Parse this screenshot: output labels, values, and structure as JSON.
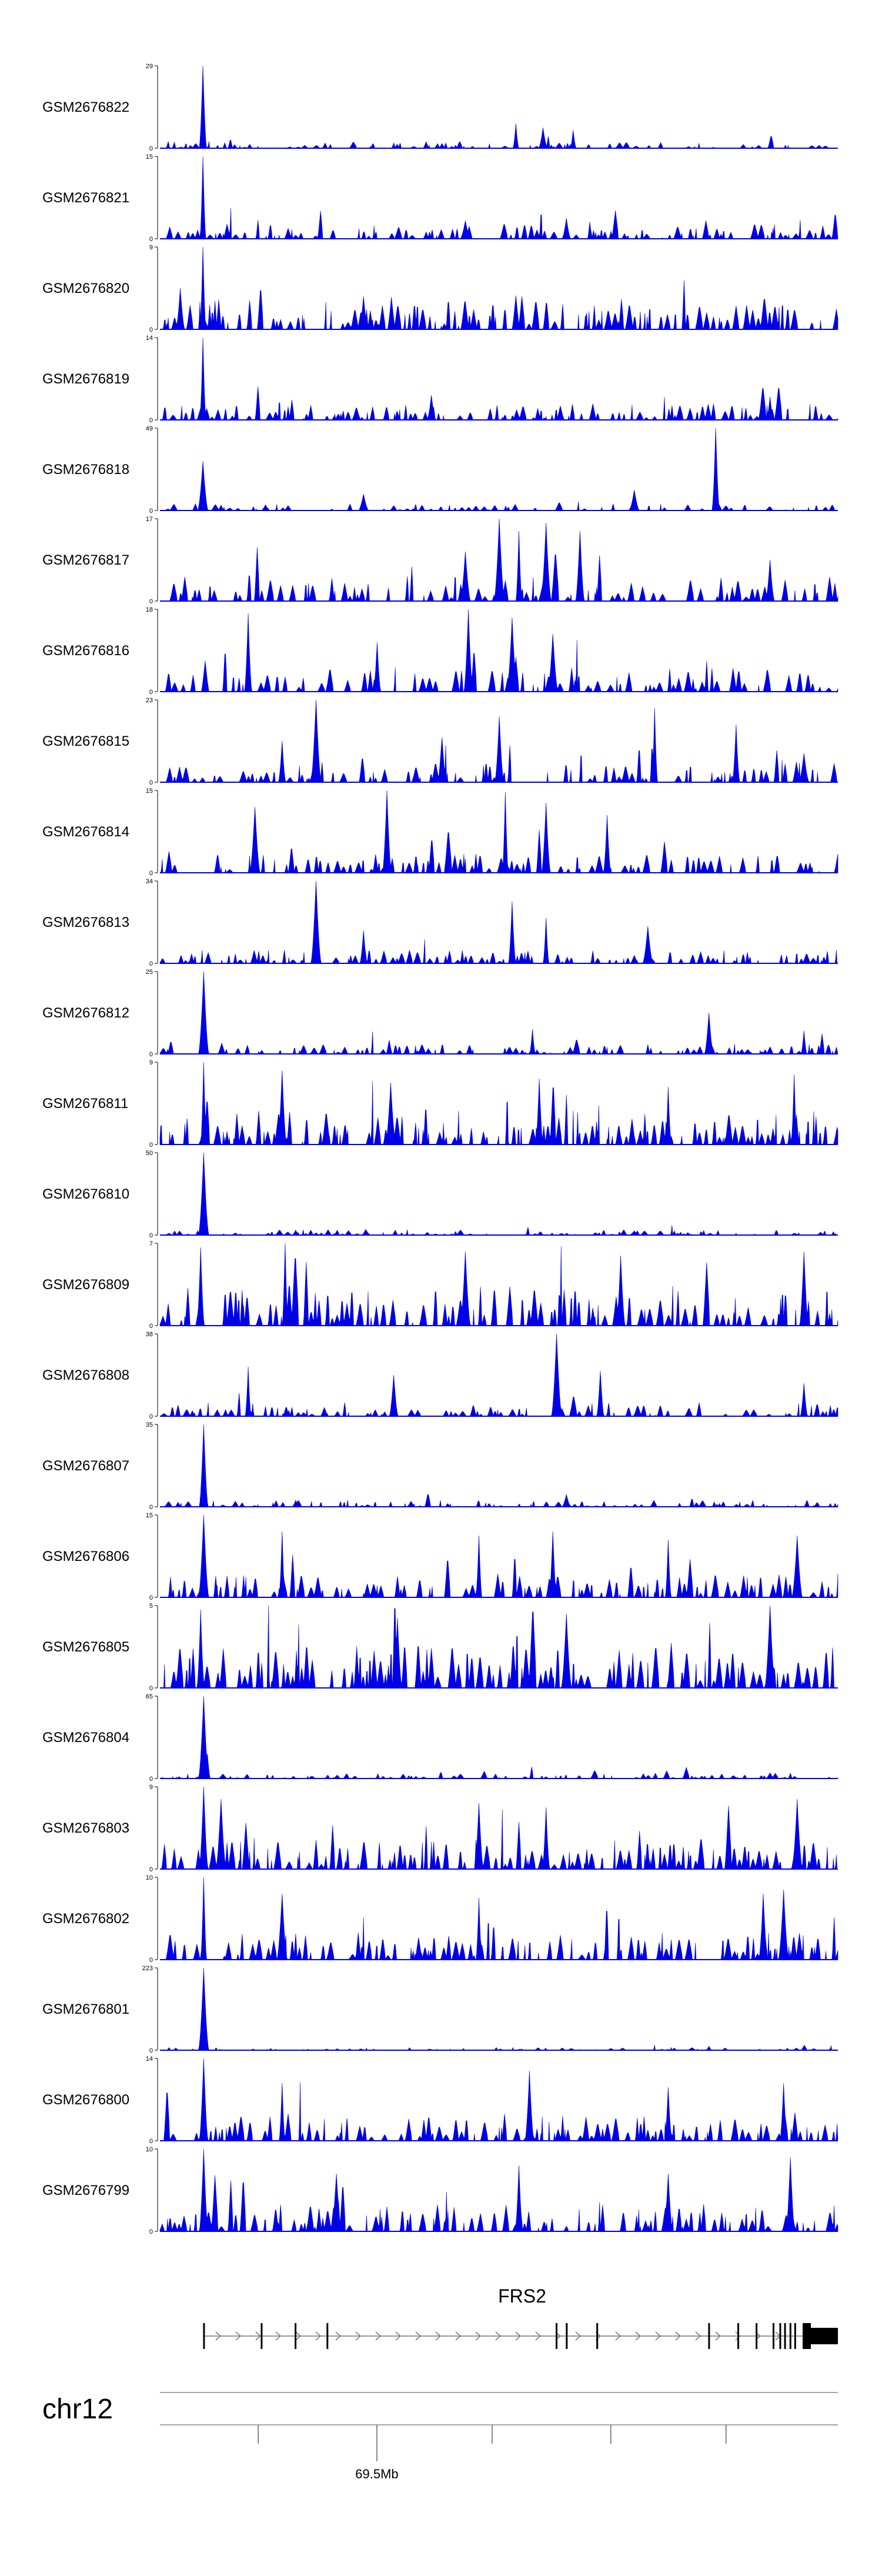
{
  "chart_data": {
    "type": "area",
    "title": "",
    "chromosome": "chr12",
    "colors": {
      "signal": "#0000e6",
      "axis": "#555555",
      "gene": "#000000"
    },
    "ylim_min": 0,
    "tracks": [
      {
        "name": "GSM2676822",
        "ymax": "29",
        "density": 0.55,
        "base": 0.05,
        "spikes": [
          [
            0.063,
            1.0
          ],
          [
            0.525,
            0.3
          ],
          [
            0.565,
            0.25
          ],
          [
            0.61,
            0.22
          ]
        ]
      },
      {
        "name": "GSM2676821",
        "ymax": "15",
        "density": 0.7,
        "base": 0.12,
        "spikes": [
          [
            0.063,
            1.0
          ],
          [
            0.6,
            0.25
          ],
          [
            0.45,
            0.22
          ]
        ]
      },
      {
        "name": "GSM2676820",
        "ymax": "9",
        "density": 0.95,
        "base": 0.25,
        "spikes": [
          [
            0.063,
            1.0
          ],
          [
            0.03,
            0.5
          ],
          [
            0.3,
            0.4
          ]
        ]
      },
      {
        "name": "GSM2676819",
        "ymax": "14",
        "density": 0.8,
        "base": 0.12,
        "spikes": [
          [
            0.063,
            1.0
          ],
          [
            0.4,
            0.3
          ],
          [
            0.9,
            0.28
          ]
        ]
      },
      {
        "name": "GSM2676818",
        "ymax": "49",
        "density": 0.5,
        "base": 0.05,
        "spikes": [
          [
            0.82,
            1.0
          ],
          [
            0.063,
            0.6
          ],
          [
            0.7,
            0.25
          ],
          [
            0.3,
            0.2
          ]
        ]
      },
      {
        "name": "GSM2676817",
        "ymax": "17",
        "density": 0.7,
        "base": 0.18,
        "spikes": [
          [
            0.5,
            1.0
          ],
          [
            0.57,
            0.95
          ],
          [
            0.62,
            0.85
          ],
          [
            0.53,
            0.85
          ],
          [
            0.45,
            0.6
          ],
          [
            0.9,
            0.5
          ]
        ]
      },
      {
        "name": "GSM2676816",
        "ymax": "18",
        "density": 0.7,
        "base": 0.18,
        "spikes": [
          [
            0.455,
            1.0
          ],
          [
            0.13,
            0.95
          ],
          [
            0.52,
            0.9
          ],
          [
            0.58,
            0.7
          ],
          [
            0.32,
            0.6
          ]
        ]
      },
      {
        "name": "GSM2676815",
        "ymax": "23",
        "density": 0.6,
        "base": 0.15,
        "spikes": [
          [
            0.23,
            1.0
          ],
          [
            0.73,
            0.9
          ],
          [
            0.5,
            0.8
          ],
          [
            0.85,
            0.7
          ],
          [
            0.18,
            0.5
          ],
          [
            0.95,
            0.35
          ]
        ]
      },
      {
        "name": "GSM2676814",
        "ymax": "15",
        "density": 0.7,
        "base": 0.15,
        "spikes": [
          [
            0.335,
            1.0
          ],
          [
            0.51,
            0.98
          ],
          [
            0.57,
            0.85
          ],
          [
            0.14,
            0.8
          ],
          [
            0.66,
            0.7
          ]
        ]
      },
      {
        "name": "GSM2676813",
        "ymax": "34",
        "density": 0.65,
        "base": 0.1,
        "spikes": [
          [
            0.23,
            1.0
          ],
          [
            0.52,
            0.75
          ],
          [
            0.57,
            0.55
          ],
          [
            0.72,
            0.45
          ],
          [
            0.3,
            0.4
          ]
        ]
      },
      {
        "name": "GSM2676812",
        "ymax": "25",
        "density": 0.65,
        "base": 0.08,
        "spikes": [
          [
            0.065,
            1.0
          ],
          [
            0.81,
            0.5
          ],
          [
            0.55,
            0.3
          ],
          [
            0.95,
            0.28
          ]
        ]
      },
      {
        "name": "GSM2676811",
        "ymax": "9",
        "density": 0.8,
        "base": 0.25,
        "spikes": [
          [
            0.065,
            1.0
          ],
          [
            0.18,
            0.9
          ],
          [
            0.935,
            0.85
          ],
          [
            0.56,
            0.8
          ],
          [
            0.34,
            0.75
          ],
          [
            0.75,
            0.7
          ]
        ]
      },
      {
        "name": "GSM2676810",
        "ymax": "50",
        "density": 0.5,
        "base": 0.04,
        "spikes": [
          [
            0.065,
            1.0
          ],
          [
            0.2,
            0.06
          ],
          [
            0.7,
            0.05
          ]
        ]
      },
      {
        "name": "GSM2676809",
        "ymax": "7",
        "density": 0.9,
        "base": 0.3,
        "spikes": [
          [
            0.06,
            0.95
          ],
          [
            0.185,
            1.0
          ],
          [
            0.45,
            0.9
          ],
          [
            0.68,
            0.85
          ],
          [
            0.95,
            0.9
          ]
        ]
      },
      {
        "name": "GSM2676808",
        "ymax": "38",
        "density": 0.65,
        "base": 0.1,
        "spikes": [
          [
            0.585,
            1.0
          ],
          [
            0.13,
            0.6
          ],
          [
            0.345,
            0.5
          ],
          [
            0.65,
            0.55
          ],
          [
            0.95,
            0.4
          ]
        ]
      },
      {
        "name": "GSM2676807",
        "ymax": "35",
        "density": 0.55,
        "base": 0.05,
        "spikes": [
          [
            0.065,
            1.0
          ],
          [
            0.6,
            0.15
          ],
          [
            0.2,
            0.08
          ]
        ]
      },
      {
        "name": "GSM2676806",
        "ymax": "15",
        "density": 0.75,
        "base": 0.18,
        "spikes": [
          [
            0.065,
            1.0
          ],
          [
            0.18,
            0.8
          ],
          [
            0.58,
            0.8
          ],
          [
            0.47,
            0.75
          ],
          [
            0.75,
            0.7
          ],
          [
            0.94,
            0.75
          ]
        ]
      },
      {
        "name": "GSM2676805",
        "ymax": "5",
        "density": 0.98,
        "base": 0.35,
        "spikes": [
          [
            0.06,
            0.95
          ],
          [
            0.9,
            1.0
          ],
          [
            0.6,
            0.9
          ],
          [
            0.35,
            0.85
          ]
        ]
      },
      {
        "name": "GSM2676804",
        "ymax": "65",
        "density": 0.5,
        "base": 0.04,
        "spikes": [
          [
            0.065,
            1.0
          ],
          [
            0.07,
            0.3
          ],
          [
            0.9,
            0.07
          ]
        ]
      },
      {
        "name": "GSM2676803",
        "ymax": "9",
        "density": 0.85,
        "base": 0.22,
        "spikes": [
          [
            0.065,
            1.0
          ],
          [
            0.09,
            0.85
          ],
          [
            0.47,
            0.8
          ],
          [
            0.57,
            0.75
          ],
          [
            0.94,
            0.85
          ]
        ]
      },
      {
        "name": "GSM2676802",
        "ymax": "10",
        "density": 0.8,
        "base": 0.2,
        "spikes": [
          [
            0.065,
            1.0
          ],
          [
            0.18,
            0.8
          ],
          [
            0.47,
            0.75
          ],
          [
            0.89,
            0.8
          ],
          [
            0.92,
            0.85
          ]
        ]
      },
      {
        "name": "GSM2676801",
        "ymax": "223",
        "density": 0.4,
        "base": 0.02,
        "spikes": [
          [
            0.065,
            1.0
          ],
          [
            0.81,
            0.05
          ]
        ]
      },
      {
        "name": "GSM2676800",
        "ymax": "14",
        "density": 0.8,
        "base": 0.2,
        "spikes": [
          [
            0.065,
            1.0
          ],
          [
            0.545,
            0.85
          ],
          [
            0.18,
            0.7
          ],
          [
            0.92,
            0.7
          ],
          [
            0.75,
            0.65
          ]
        ]
      },
      {
        "name": "GSM2676799",
        "ymax": "10",
        "density": 0.8,
        "base": 0.2,
        "spikes": [
          [
            0.065,
            1.0
          ],
          [
            0.93,
            0.9
          ],
          [
            0.53,
            0.8
          ],
          [
            0.26,
            0.7
          ],
          [
            0.75,
            0.7
          ]
        ]
      }
    ],
    "gene": {
      "name": "FRS2",
      "strand": "+",
      "start_frac": 0.065,
      "end_frac": 1.0,
      "exon_fracs": [
        0.065,
        0.15,
        0.2,
        0.247,
        0.585,
        0.6,
        0.645,
        0.81,
        0.853,
        0.88,
        0.905,
        0.915,
        0.922,
        0.93,
        0.937
      ]
    },
    "axis": {
      "label": "69.5Mb",
      "labelled_tick_frac": 0.32,
      "tick_fracs": [
        0.145,
        0.32,
        0.49,
        0.665,
        0.835
      ]
    }
  }
}
